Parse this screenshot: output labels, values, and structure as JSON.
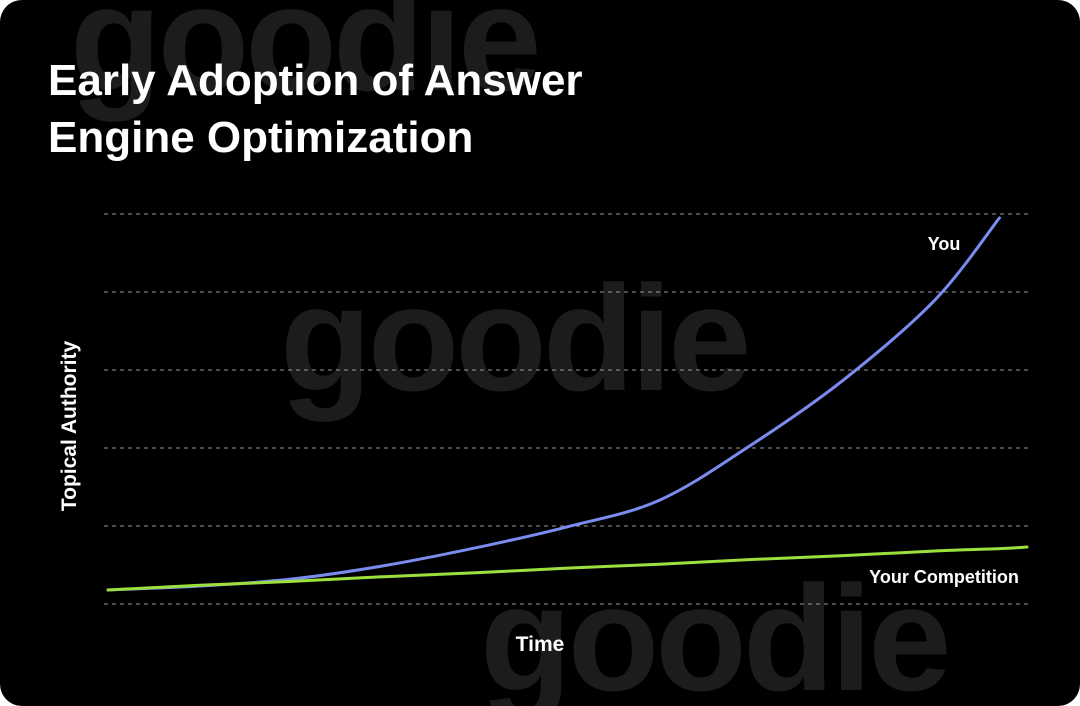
{
  "watermark": "goodie",
  "chart_data": {
    "type": "line",
    "title": [
      "Early Adoption of Answer",
      "Engine Optimization"
    ],
    "x_label": "Time",
    "y_label": "Topical Authority",
    "x": [
      0,
      1,
      2,
      3,
      4,
      5,
      6,
      7,
      8,
      9,
      9.7,
      10
    ],
    "xlim": [
      0,
      10
    ],
    "ylim": [
      0,
      5
    ],
    "yticks": [
      0,
      1,
      2,
      3,
      4,
      5
    ],
    "grid": true,
    "series": [
      {
        "name": "You",
        "color": "#7b8cf0",
        "values": [
          0.18,
          0.23,
          0.32,
          0.49,
          0.72,
          0.99,
          1.33,
          2.04,
          2.87,
          3.9,
          4.95,
          null
        ]
      },
      {
        "name": "Your Competition",
        "color": "#9be03c",
        "values": [
          0.18,
          0.24,
          0.29,
          0.35,
          0.4,
          0.46,
          0.51,
          0.57,
          0.62,
          0.68,
          0.71,
          0.73
        ]
      }
    ]
  }
}
